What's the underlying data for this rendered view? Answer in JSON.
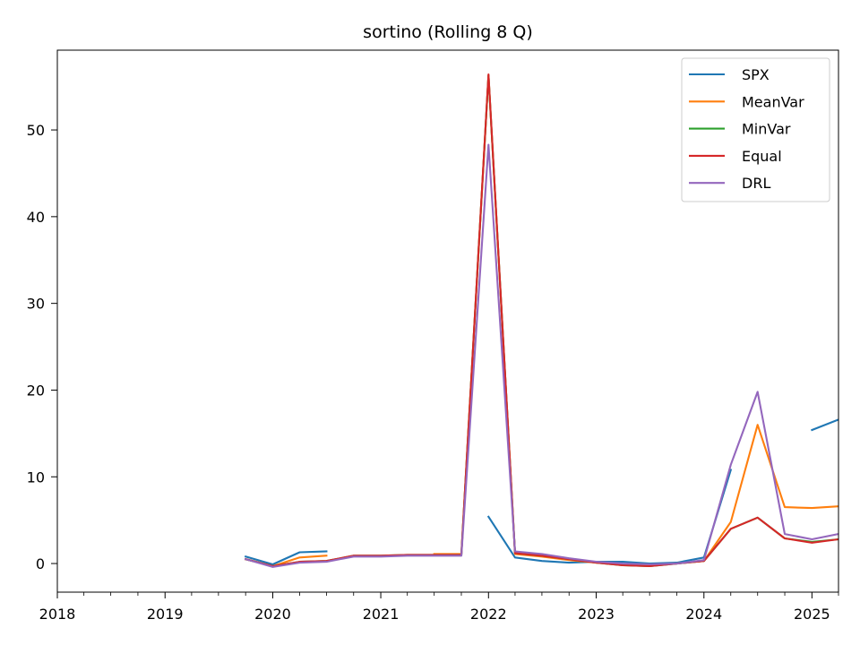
{
  "chart_data": {
    "type": "line",
    "title": "sortino (Rolling 8 Q)",
    "xlabel": "",
    "ylabel": "",
    "xlim": [
      "2018-01-01",
      "2025-04-01"
    ],
    "ylim": [
      -3.3,
      59.2
    ],
    "x_ticks": [
      "2018",
      "2019",
      "2020",
      "2021",
      "2022",
      "2023",
      "2024",
      "2025"
    ],
    "y_ticks": [
      0,
      10,
      20,
      30,
      40,
      50
    ],
    "grid": false,
    "legend_position": "top-right",
    "x": [
      "2019-10-01",
      "2020-01-01",
      "2020-04-01",
      "2020-07-01",
      "2020-10-01",
      "2021-01-01",
      "2021-04-01",
      "2021-07-01",
      "2021-10-01",
      "2022-01-01",
      "2022-04-01",
      "2022-07-01",
      "2022-10-01",
      "2023-01-01",
      "2023-04-01",
      "2023-07-01",
      "2023-10-01",
      "2024-01-01",
      "2024-04-01",
      "2024-07-01",
      "2024-10-01",
      "2025-01-01",
      "2025-04-01"
    ],
    "series": [
      {
        "name": "SPX",
        "color": "#1f77b4",
        "values": [
          0.8,
          -0.1,
          1.3,
          1.4,
          null,
          null,
          null,
          null,
          null,
          5.4,
          0.7,
          0.3,
          0.1,
          0.2,
          0.2,
          0.0,
          0.1,
          0.7,
          10.8,
          null,
          null,
          15.4,
          16.6
        ]
      },
      {
        "name": "MeanVar",
        "color": "#ff7f0e",
        "values": [
          0.5,
          -0.3,
          0.7,
          0.9,
          null,
          null,
          null,
          1.1,
          1.1,
          56.3,
          1.1,
          0.8,
          0.4,
          0.1,
          -0.1,
          -0.2,
          0.0,
          0.3,
          4.8,
          16.0,
          6.5,
          6.4,
          6.6
        ]
      },
      {
        "name": "MinVar",
        "color": "#2ca02c",
        "values": [
          0.5,
          -0.3,
          0.2,
          0.3,
          0.9,
          0.9,
          1.0,
          1.0,
          1.0,
          56.3,
          1.2,
          0.9,
          0.5,
          0.1,
          -0.2,
          -0.3,
          0.0,
          0.3,
          4.0,
          5.3,
          2.9,
          2.5,
          2.8
        ]
      },
      {
        "name": "Equal",
        "color": "#d62728",
        "values": [
          0.5,
          -0.3,
          0.2,
          0.3,
          0.9,
          0.9,
          1.0,
          1.0,
          1.0,
          56.4,
          1.2,
          0.9,
          0.5,
          0.1,
          -0.2,
          -0.3,
          0.0,
          0.3,
          4.0,
          5.3,
          2.9,
          2.4,
          2.8
        ]
      },
      {
        "name": "DRL",
        "color": "#9467bd",
        "values": [
          0.5,
          -0.4,
          0.1,
          0.2,
          0.8,
          0.8,
          0.9,
          0.9,
          0.9,
          48.3,
          1.4,
          1.1,
          0.6,
          0.2,
          0.0,
          -0.1,
          0.0,
          0.4,
          11.4,
          19.8,
          3.4,
          2.8,
          3.4
        ]
      }
    ]
  }
}
